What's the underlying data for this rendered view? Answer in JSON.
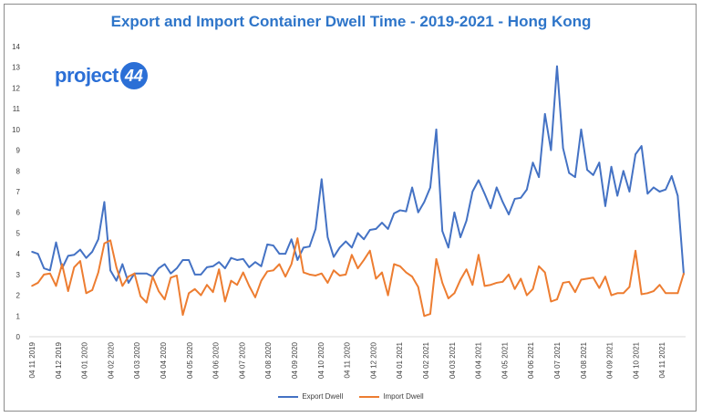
{
  "chart_data": {
    "type": "line",
    "title": "Export and Import Container Dwell Time - 2019-2021 - Hong Kong",
    "ylim": [
      0,
      14
    ],
    "yticks": [
      "0",
      "1",
      "2",
      "3",
      "4",
      "5",
      "6",
      "7",
      "8",
      "9",
      "10",
      "11",
      "12",
      "13",
      "14"
    ],
    "xticks": [
      "04 11 2019",
      "04 12 2019",
      "04 01 2020",
      "04 02 2020",
      "04 03 2020",
      "04 04 2020",
      "04 05 2020",
      "04 06 2020",
      "04 07 2020",
      "04 08 2020",
      "04 09 2020",
      "04 10 2020",
      "04 11 2020",
      "04 12 2020",
      "04 01 2021",
      "04 02 2021",
      "04 03 2021",
      "04 04 2021",
      "04 05 2021",
      "04 06 2021",
      "04 07 2021",
      "04 08 2021",
      "04 09 2021",
      "04 10 2021",
      "04 11 2021"
    ],
    "x_points_per_month": 4.35,
    "legend_position": "bottom",
    "grid": false,
    "series": [
      {
        "name": "Export Dwell",
        "color": "#4472c4",
        "values": [
          4.1,
          4.0,
          3.3,
          3.2,
          4.55,
          3.3,
          3.9,
          3.95,
          4.2,
          3.8,
          4.1,
          4.7,
          6.5,
          3.2,
          2.7,
          3.5,
          2.6,
          3.05,
          3.05,
          3.05,
          2.9,
          3.3,
          3.5,
          3.05,
          3.3,
          3.7,
          3.7,
          3.0,
          3.0,
          3.35,
          3.4,
          3.6,
          3.3,
          3.8,
          3.7,
          3.75,
          3.35,
          3.6,
          3.4,
          4.45,
          4.4,
          4.0,
          4.0,
          4.7,
          3.7,
          4.3,
          4.35,
          5.2,
          7.6,
          4.8,
          3.85,
          4.3,
          4.6,
          4.3,
          5.0,
          4.7,
          5.15,
          5.2,
          5.5,
          5.2,
          5.95,
          6.1,
          6.05,
          7.2,
          6.0,
          6.5,
          7.2,
          10.0,
          5.1,
          4.3,
          6.0,
          4.8,
          5.6,
          7.0,
          7.55,
          6.9,
          6.2,
          7.2,
          6.5,
          5.9,
          6.65,
          6.7,
          7.1,
          8.4,
          7.7,
          10.75,
          9.0,
          13.05,
          9.1,
          7.9,
          7.7,
          10.0,
          8.05,
          7.8,
          8.4,
          6.3,
          8.2,
          6.8,
          8.0,
          7.0,
          8.8,
          9.2,
          6.9,
          7.2,
          7.0,
          7.1,
          7.75,
          6.8,
          3.0
        ]
      },
      {
        "name": "Import Dwell",
        "color": "#ed7d31",
        "values": [
          2.45,
          2.6,
          3.0,
          3.05,
          2.45,
          3.5,
          2.2,
          3.35,
          3.65,
          2.1,
          2.25,
          3.1,
          4.5,
          4.65,
          3.35,
          2.45,
          2.9,
          3.05,
          1.95,
          1.65,
          2.9,
          2.2,
          1.8,
          2.85,
          2.95,
          1.05,
          2.1,
          2.3,
          2.0,
          2.5,
          2.15,
          3.25,
          1.7,
          2.7,
          2.5,
          3.1,
          2.45,
          1.9,
          2.7,
          3.15,
          3.2,
          3.5,
          2.9,
          3.5,
          4.75,
          3.1,
          3.0,
          2.95,
          3.05,
          2.6,
          3.2,
          2.95,
          3.0,
          3.95,
          3.3,
          3.7,
          4.15,
          2.8,
          3.1,
          2.0,
          3.5,
          3.4,
          3.1,
          2.9,
          2.4,
          1.0,
          1.1,
          3.75,
          2.6,
          1.85,
          2.1,
          2.75,
          3.25,
          2.5,
          3.95,
          2.45,
          2.5,
          2.6,
          2.65,
          3.0,
          2.3,
          2.8,
          2.0,
          2.3,
          3.4,
          3.1,
          1.7,
          1.8,
          2.6,
          2.65,
          2.15,
          2.75,
          2.8,
          2.85,
          2.35,
          2.9,
          2.0,
          2.1,
          2.1,
          2.4,
          4.15,
          2.05,
          2.1,
          2.2,
          2.5,
          2.1,
          2.1,
          2.1,
          3.05
        ]
      }
    ]
  },
  "logo": {
    "text": "project",
    "badge": "44"
  }
}
